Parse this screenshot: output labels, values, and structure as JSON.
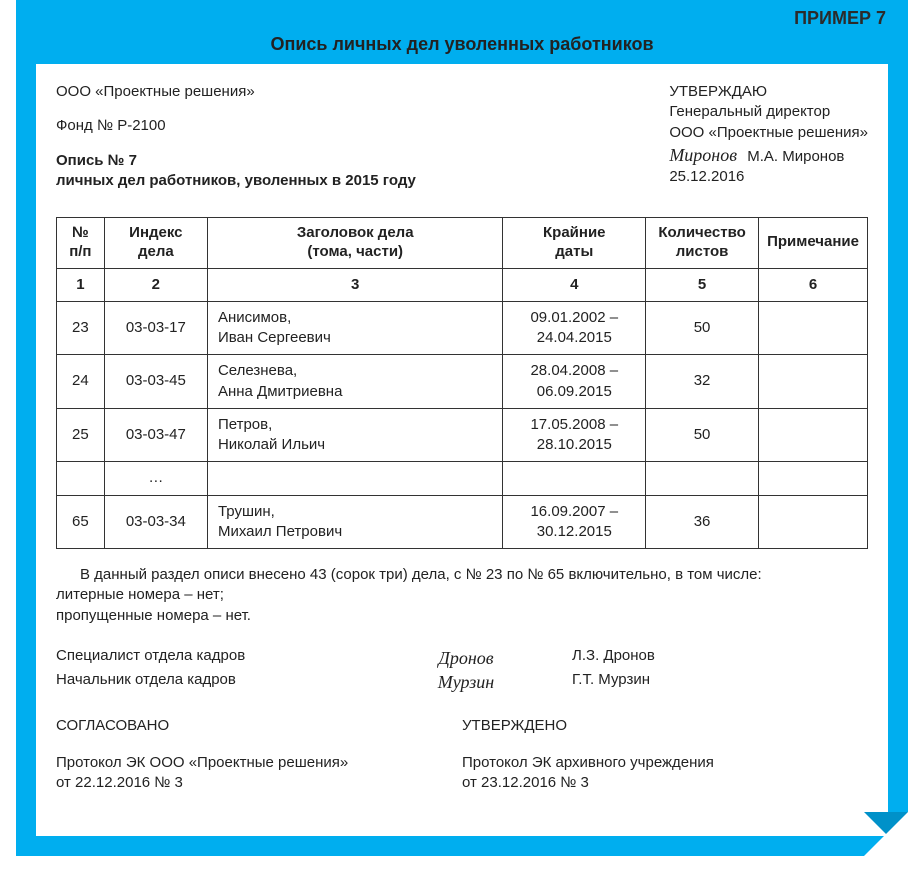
{
  "colors": {
    "frame_bg": "#00aeef",
    "page_bg": "#ffffff",
    "text": "#222222",
    "border": "#333333",
    "curl_shade": "#0091c9"
  },
  "typography": {
    "base_family": "Arial",
    "base_size_pt": 11,
    "title_size_pt": 13,
    "script_family": "Brush Script MT"
  },
  "example_label": "ПРИМЕР 7",
  "doc_title": "Опись личных дел уволенных работников",
  "header": {
    "org": "ООО «Проектные решения»",
    "fund": "Фонд № Р-2100",
    "opis_no": "Опись № 7",
    "opis_sub": "личных дел работников, уволенных в 2015 году",
    "approve": {
      "word": "УТВЕРЖДАЮ",
      "position": "Генеральный директор",
      "org": "ООО «Проектные решения»",
      "signature_script": "Миронов",
      "name": "М.А. Миронов",
      "date": "25.12.2016"
    }
  },
  "table": {
    "columns": [
      {
        "key": "n",
        "label_l1": "№",
        "label_l2": "п/п",
        "num": "1",
        "width_pct": 6,
        "align": "center"
      },
      {
        "key": "index",
        "label_l1": "Индекс",
        "label_l2": "дела",
        "num": "2",
        "width_pct": 13,
        "align": "center"
      },
      {
        "key": "title",
        "label_l1": "Заголовок дела",
        "label_l2": "(тома, части)",
        "num": "3",
        "width_pct": 38,
        "align": "left"
      },
      {
        "key": "dates",
        "label_l1": "Крайние",
        "label_l2": "даты",
        "num": "4",
        "width_pct": 18,
        "align": "center"
      },
      {
        "key": "sheets",
        "label_l1": "Количество",
        "label_l2": "листов",
        "num": "5",
        "width_pct": 14,
        "align": "center"
      },
      {
        "key": "note",
        "label_l1": "Примечание",
        "label_l2": "",
        "num": "6",
        "width_pct": 11,
        "align": "center"
      }
    ],
    "rows": [
      {
        "n": "23",
        "index": "03-03-17",
        "title_l1": "Анисимов,",
        "title_l2": "Иван Сергеевич",
        "date_l1": "09.01.2002 –",
        "date_l2": "24.04.2015",
        "sheets": "50",
        "note": ""
      },
      {
        "n": "24",
        "index": "03-03-45",
        "title_l1": "Селезнева,",
        "title_l2": "Анна Дмитриевна",
        "date_l1": "28.04.2008 –",
        "date_l2": "06.09.2015",
        "sheets": "32",
        "note": ""
      },
      {
        "n": "25",
        "index": "03-03-47",
        "title_l1": "Петров,",
        "title_l2": "Николай Ильич",
        "date_l1": "17.05.2008 –",
        "date_l2": "28.10.2015",
        "sheets": "50",
        "note": ""
      },
      {
        "n": "",
        "index": "…",
        "title_l1": "",
        "title_l2": "",
        "date_l1": "",
        "date_l2": "",
        "sheets": "",
        "note": ""
      },
      {
        "n": "65",
        "index": "03-03-34",
        "title_l1": "Трушин,",
        "title_l2": "Михаил Петрович",
        "date_l1": "16.09.2007 –",
        "date_l2": "30.12.2015",
        "sheets": "36",
        "note": ""
      }
    ]
  },
  "notes": {
    "line1": "В данный раздел описи внесено 43 (сорок три) дела, с № 23 по № 65 включительно, в том числе:",
    "line2": "литерные номера – нет;",
    "line3": "пропущенные номера – нет."
  },
  "signatures": [
    {
      "role": "Специалист отдела кадров",
      "script": "Дронов",
      "name": "Л.З. Дронов"
    },
    {
      "role": "Начальник отдела кадров",
      "script": "Мурзин",
      "name": "Г.Т. Мурзин"
    }
  ],
  "approvals": {
    "left": {
      "head": "СОГЛАСОВАНО",
      "line1": "Протокол ЭК ООО «Проектные решения»",
      "line2": "от 22.12.2016 № 3"
    },
    "right": {
      "head": "УТВЕРЖДЕНО",
      "line1": "Протокол ЭК архивного учреждения",
      "line2": "от 23.12.2016 № 3"
    }
  }
}
